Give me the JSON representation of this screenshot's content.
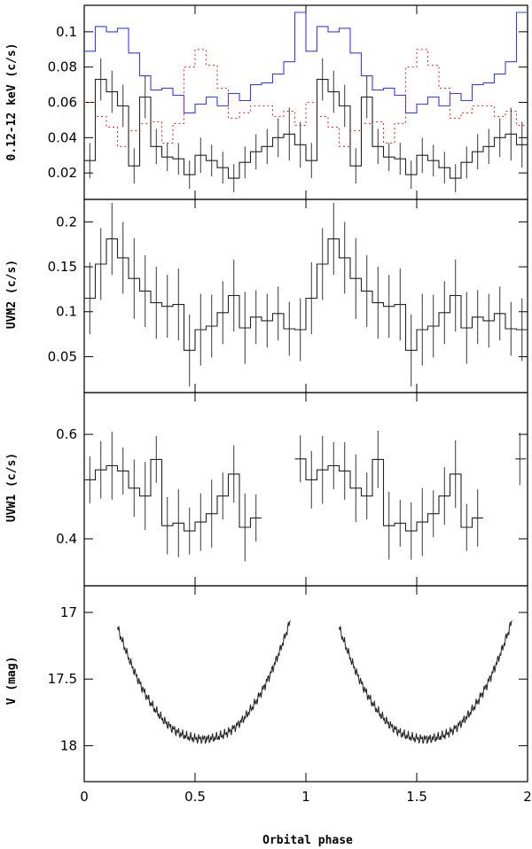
{
  "chart_data": [
    {
      "type": "line",
      "ylabel": "0.12-12 keV (c/s)",
      "xlim": [
        0,
        2
      ],
      "ylim": [
        0.005,
        0.115
      ],
      "yticks": [
        0.02,
        0.04,
        0.06,
        0.08,
        0.1
      ],
      "ytick_labels": [
        "0.02",
        "0.04",
        "0.06",
        "0.08",
        "0.1"
      ],
      "series": [
        {
          "color": "#3a3aff",
          "style": "step-solid",
          "x": [
            0,
            0.05,
            0.1,
            0.15,
            0.2,
            0.25,
            0.3,
            0.35,
            0.4,
            0.45,
            0.5,
            0.55,
            0.6,
            0.65,
            0.7,
            0.75,
            0.8,
            0.85,
            0.9,
            0.95,
            1.0,
            1.05,
            1.1,
            1.15,
            1.2,
            1.25,
            1.3,
            1.35,
            1.4,
            1.45,
            1.5,
            1.55,
            1.6,
            1.65,
            1.7,
            1.75,
            1.8,
            1.85,
            1.9,
            1.95,
            2.0
          ],
          "values": [
            0.089,
            0.103,
            0.1,
            0.102,
            0.088,
            0.075,
            0.067,
            0.068,
            0.064,
            0.054,
            0.059,
            0.063,
            0.058,
            0.065,
            0.061,
            0.07,
            0.071,
            0.076,
            0.083,
            0.111,
            0.089,
            0.103,
            0.1,
            0.102,
            0.088,
            0.075,
            0.067,
            0.068,
            0.064,
            0.054,
            0.059,
            0.063,
            0.058,
            0.065,
            0.061,
            0.07,
            0.071,
            0.076,
            0.083,
            0.111,
            0.111
          ]
        },
        {
          "color": "#e03030",
          "style": "step-dotted",
          "x": [
            0,
            0.05,
            0.1,
            0.15,
            0.2,
            0.25,
            0.3,
            0.35,
            0.4,
            0.45,
            0.5,
            0.55,
            0.6,
            0.65,
            0.7,
            0.75,
            0.8,
            0.85,
            0.9,
            0.95,
            1.0,
            1.05,
            1.1,
            1.15,
            1.2,
            1.25,
            1.3,
            1.35,
            1.4,
            1.45,
            1.5,
            1.55,
            1.6,
            1.65,
            1.7,
            1.75,
            1.8,
            1.85,
            1.9,
            1.95,
            2.0
          ],
          "values": [
            0.06,
            0.052,
            0.046,
            0.035,
            0.044,
            0.048,
            0.049,
            0.037,
            0.048,
            0.08,
            0.09,
            0.081,
            0.068,
            0.051,
            0.054,
            0.058,
            0.058,
            0.052,
            0.055,
            0.047,
            0.06,
            0.052,
            0.046,
            0.035,
            0.044,
            0.048,
            0.049,
            0.037,
            0.048,
            0.08,
            0.09,
            0.081,
            0.068,
            0.051,
            0.054,
            0.058,
            0.058,
            0.052,
            0.055,
            0.047,
            0.047
          ]
        },
        {
          "color": "#222222",
          "style": "step-solid-errorbars",
          "x": [
            0,
            0.05,
            0.1,
            0.15,
            0.2,
            0.25,
            0.3,
            0.35,
            0.4,
            0.45,
            0.5,
            0.55,
            0.6,
            0.65,
            0.7,
            0.75,
            0.8,
            0.85,
            0.9,
            0.95,
            1.0,
            1.05,
            1.1,
            1.15,
            1.2,
            1.25,
            1.3,
            1.35,
            1.4,
            1.45,
            1.5,
            1.55,
            1.6,
            1.65,
            1.7,
            1.75,
            1.8,
            1.85,
            1.9,
            1.95,
            2.0
          ],
          "values": [
            0.027,
            0.073,
            0.066,
            0.058,
            0.024,
            0.063,
            0.035,
            0.029,
            0.028,
            0.019,
            0.03,
            0.027,
            0.023,
            0.017,
            0.026,
            0.032,
            0.035,
            0.04,
            0.042,
            0.036,
            0.027,
            0.073,
            0.066,
            0.058,
            0.024,
            0.063,
            0.035,
            0.029,
            0.028,
            0.019,
            0.03,
            0.027,
            0.023,
            0.017,
            0.026,
            0.032,
            0.035,
            0.04,
            0.042,
            0.036,
            0.036
          ],
          "errors": [
            0.01,
            0.012,
            0.012,
            0.012,
            0.01,
            0.012,
            0.01,
            0.008,
            0.009,
            0.008,
            0.01,
            0.009,
            0.009,
            0.008,
            0.009,
            0.01,
            0.01,
            0.011,
            0.015,
            0.013,
            0.01,
            0.012,
            0.012,
            0.012,
            0.01,
            0.012,
            0.01,
            0.008,
            0.009,
            0.008,
            0.01,
            0.009,
            0.009,
            0.008,
            0.009,
            0.01,
            0.01,
            0.011,
            0.015,
            0.013,
            0.013
          ]
        }
      ]
    },
    {
      "type": "line",
      "ylabel": "UVM2 (c/s)",
      "xlim": [
        0,
        2
      ],
      "ylim": [
        0.01,
        0.225
      ],
      "yticks": [
        0.05,
        0.1,
        0.15,
        0.2
      ],
      "ytick_labels": [
        "0.05",
        "0.1",
        "0.15",
        "0.2"
      ],
      "series": [
        {
          "color": "#222222",
          "style": "step-solid-errorbars",
          "x": [
            0,
            0.05,
            0.1,
            0.15,
            0.2,
            0.25,
            0.3,
            0.35,
            0.4,
            0.45,
            0.5,
            0.55,
            0.6,
            0.65,
            0.7,
            0.75,
            0.8,
            0.85,
            0.9,
            0.95,
            1.0,
            1.05,
            1.1,
            1.15,
            1.2,
            1.25,
            1.3,
            1.35,
            1.4,
            1.45,
            1.5,
            1.55,
            1.6,
            1.65,
            1.7,
            1.75,
            1.8,
            1.85,
            1.9,
            1.95,
            2.0
          ],
          "values": [
            0.115,
            0.153,
            0.181,
            0.16,
            0.137,
            0.123,
            0.11,
            0.106,
            0.108,
            0.057,
            0.08,
            0.084,
            0.099,
            0.118,
            0.082,
            0.094,
            0.09,
            0.098,
            0.081,
            0.08,
            0.115,
            0.153,
            0.181,
            0.16,
            0.137,
            0.123,
            0.11,
            0.106,
            0.108,
            0.057,
            0.08,
            0.084,
            0.099,
            0.118,
            0.082,
            0.094,
            0.09,
            0.098,
            0.081,
            0.08,
            0.08
          ],
          "errors": [
            0.04,
            0.04,
            0.04,
            0.04,
            0.045,
            0.04,
            0.04,
            0.035,
            0.04,
            0.04,
            0.04,
            0.035,
            0.035,
            0.04,
            0.04,
            0.03,
            0.03,
            0.03,
            0.03,
            0.035,
            0.04,
            0.04,
            0.04,
            0.04,
            0.045,
            0.04,
            0.04,
            0.035,
            0.04,
            0.04,
            0.04,
            0.035,
            0.035,
            0.04,
            0.04,
            0.03,
            0.03,
            0.03,
            0.03,
            0.035,
            0.035
          ]
        }
      ]
    },
    {
      "type": "line",
      "ylabel": "UVW1 (c/s)",
      "xlim": [
        0,
        2
      ],
      "ylim": [
        0.31,
        0.68
      ],
      "yticks": [
        0.4,
        0.6
      ],
      "ytick_labels": [
        "0.4",
        "0.6"
      ],
      "series": [
        {
          "color": "#222222",
          "style": "step-solid-errorbars",
          "segments": [
            {
              "x": [
                0,
                0.05,
                0.1,
                0.15,
                0.2,
                0.25,
                0.3,
                0.35,
                0.4,
                0.45,
                0.5,
                0.55,
                0.6,
                0.65,
                0.7,
                0.75,
                0.8
              ],
              "values": [
                0.513,
                0.532,
                0.54,
                0.53,
                0.497,
                0.482,
                0.552,
                0.425,
                0.43,
                0.415,
                0.432,
                0.448,
                0.482,
                0.524,
                0.422,
                0.44,
                0.492
              ]
            },
            {
              "x": [
                0.95,
                1.0,
                1.05,
                1.1,
                1.15,
                1.2,
                1.25,
                1.3,
                1.35,
                1.4,
                1.45,
                1.5,
                1.55,
                1.6,
                1.65,
                1.7,
                1.75,
                1.8
              ],
              "values": [
                0.553,
                0.513,
                0.532,
                0.54,
                0.53,
                0.497,
                0.482,
                0.552,
                0.425,
                0.43,
                0.415,
                0.432,
                0.448,
                0.482,
                0.524,
                0.422,
                0.44,
                0.492
              ]
            }
          ],
          "extra_bins": [
            {
              "x": 1.945,
              "value": 0.553
            }
          ]
        }
      ]
    },
    {
      "type": "line",
      "ylabel": "V (mag)",
      "xlabel": "Orbital phase",
      "xlim": [
        0,
        2
      ],
      "ylim": [
        18.27,
        16.8
      ],
      "yticks": [
        17,
        17.5,
        18
      ],
      "ytick_labels": [
        "17",
        "17.5",
        "18"
      ],
      "xticks": [
        0,
        0.5,
        1,
        1.5,
        2
      ],
      "xtick_labels": [
        "0",
        "0.5",
        "1",
        "1.5",
        "2"
      ],
      "series": [
        {
          "color": "#222222",
          "style": "dense-line",
          "model": "min = 17.95 at phase 0.52; rises to 16.98 at phases 0.15 and 0.92, repeated at +1",
          "range": [
            [
              0.15,
              0.93
            ],
            [
              1.15,
              1.93
            ]
          ]
        }
      ]
    }
  ]
}
